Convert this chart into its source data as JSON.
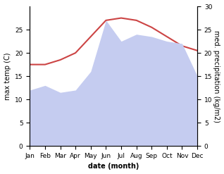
{
  "months": [
    "Jan",
    "Feb",
    "Mar",
    "Apr",
    "May",
    "Jun",
    "Jul",
    "Aug",
    "Sep",
    "Oct",
    "Nov",
    "Dec"
  ],
  "max_temp": [
    17.5,
    17.5,
    18.5,
    20.0,
    23.5,
    27.0,
    27.5,
    27.0,
    25.5,
    23.5,
    21.5,
    20.5
  ],
  "precipitation": [
    12.0,
    13.0,
    11.5,
    12.0,
    16.0,
    27.0,
    22.5,
    24.0,
    23.5,
    22.5,
    22.0,
    15.0
  ],
  "temp_color": "#cc4444",
  "precip_fill_color": "#c5ccf0",
  "background_color": "#ffffff",
  "ylabel_left": "max temp (C)",
  "ylabel_right": "med. precipitation (kg/m2)",
  "xlabel": "date (month)",
  "ylim_left": [
    0,
    30
  ],
  "ylim_right": [
    0,
    30
  ],
  "yticks_left": [
    0,
    5,
    10,
    15,
    20,
    25
  ],
  "yticks_right": [
    0,
    5,
    10,
    15,
    20,
    25,
    30
  ],
  "ylabel_left_fontsize": 7,
  "ylabel_right_fontsize": 7,
  "xlabel_fontsize": 7,
  "tick_fontsize": 6.5
}
